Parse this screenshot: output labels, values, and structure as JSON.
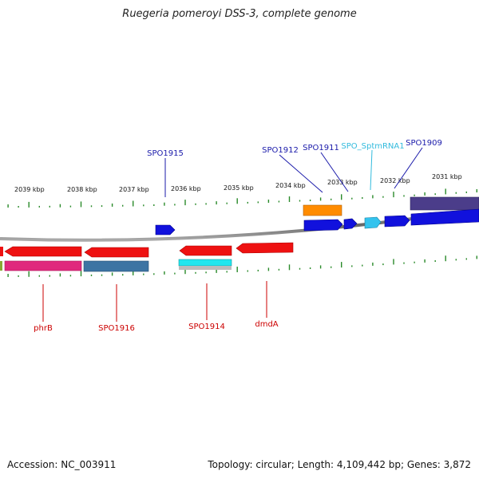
{
  "title": "Ruegeria pomeroyi DSS-3, complete genome",
  "footer": {
    "accession": "Accession: NC_003911",
    "summary": "Topology: circular; Length: 4,109,442 bp; Genes: 3,872"
  },
  "ruler_labels": [
    "2039 kbp",
    "2038 kbp",
    "2037 kbp",
    "2036 kbp",
    "2035 kbp",
    "2034 kbp",
    "2033 kbp",
    "2032 kbp",
    "2031 kbp"
  ],
  "labels_top": [
    "SPO1915",
    "SPO1912",
    "SPO1911",
    "SPO_SptmRNA1",
    "SPO1909"
  ],
  "labels_bottom": [
    "phrB",
    "SPO1916",
    "SPO1914",
    "dmdA"
  ],
  "colors": {
    "forward_label": "#1a1aaa",
    "reverse_label": "#cc0000",
    "rna_label": "#33bbdd",
    "tick": "#2a8a2a",
    "backbone": "#888888"
  }
}
